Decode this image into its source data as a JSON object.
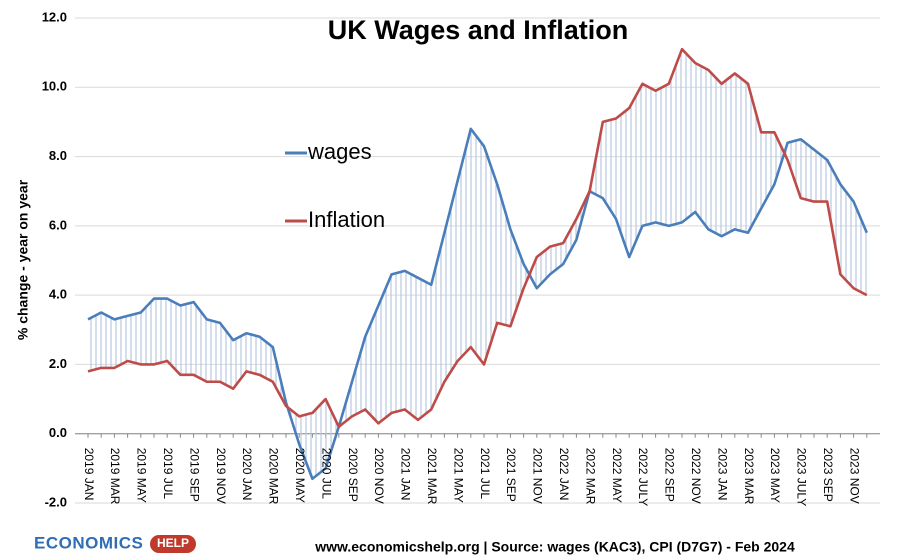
{
  "chart_data": {
    "type": "line",
    "title": "UK Wages and Inflation",
    "y_label": "% change  - year on year",
    "footer": "www.economicshelp.org | Source: wages (KAC3), CPI (D7G7) - Feb 2024",
    "logo": {
      "text": "ECONOMICS",
      "badge": "HELP"
    },
    "grid": true,
    "categories": [
      "2019 JAN",
      null,
      "2019 MAR",
      null,
      "2019 MAY",
      null,
      "2019 JUL",
      null,
      "2019 SEP",
      null,
      "2019 NOV",
      null,
      "2020 JAN",
      null,
      "2020 MAR",
      null,
      "2020 MAY",
      null,
      "2020 JUL",
      null,
      "2020 SEP",
      null,
      "2020 NOV",
      null,
      "2021 JAN",
      null,
      "2021 MAR",
      null,
      "2021 MAY",
      null,
      "2021 JUL",
      null,
      "2021 SEP",
      null,
      "2021 NOV",
      null,
      "2022 JAN",
      null,
      "2022 MAR",
      null,
      "2022 MAY",
      null,
      "2022 JULY",
      null,
      "2022 SEP",
      null,
      "2022 NOV",
      null,
      "2023 JAN",
      null,
      "2023 MAR",
      null,
      "2023 MAY",
      null,
      "2023 JULY",
      null,
      "2023 SEP",
      null,
      "2023 NOV",
      null
    ],
    "series": [
      {
        "name": "wages",
        "color": "#4a7ebb",
        "values": [
          3.3,
          3.5,
          3.3,
          3.4,
          3.5,
          3.9,
          3.9,
          3.7,
          3.8,
          3.3,
          3.2,
          2.7,
          2.9,
          2.8,
          2.5,
          0.9,
          -0.3,
          -1.3,
          -1.0,
          0.2,
          1.5,
          2.8,
          3.7,
          4.6,
          4.7,
          4.5,
          4.3,
          5.8,
          7.3,
          8.8,
          8.3,
          7.2,
          5.9,
          4.9,
          4.2,
          4.6,
          4.9,
          5.6,
          7.0,
          6.8,
          6.2,
          5.1,
          6.0,
          6.1,
          6.0,
          6.1,
          6.4,
          5.9,
          5.7,
          5.9,
          5.8,
          6.5,
          7.2,
          8.4,
          8.5,
          8.2,
          7.9,
          7.2,
          6.7,
          5.8
        ]
      },
      {
        "name": "Inflation",
        "color": "#be4b48",
        "values": [
          1.8,
          1.9,
          1.9,
          2.1,
          2.0,
          2.0,
          2.1,
          1.7,
          1.7,
          1.5,
          1.5,
          1.3,
          1.8,
          1.7,
          1.5,
          0.8,
          0.5,
          0.6,
          1.0,
          0.2,
          0.5,
          0.7,
          0.3,
          0.6,
          0.7,
          0.4,
          0.7,
          1.5,
          2.1,
          2.5,
          2.0,
          3.2,
          3.1,
          4.2,
          5.1,
          5.4,
          5.5,
          6.2,
          7.0,
          9.0,
          9.1,
          9.4,
          10.1,
          9.9,
          10.1,
          11.1,
          10.7,
          10.5,
          10.1,
          10.4,
          10.1,
          8.7,
          8.7,
          7.9,
          6.8,
          6.7,
          6.7,
          4.6,
          4.2,
          4.0
        ]
      }
    ],
    "ylim": [
      -2,
      12
    ],
    "yticks": [
      {
        "value": -2,
        "label": "-2.0"
      },
      {
        "value": 0,
        "label": "0.0"
      },
      {
        "value": 2,
        "label": "2.0"
      },
      {
        "value": 4,
        "label": "4.0"
      },
      {
        "value": 6,
        "label": "6.0"
      },
      {
        "value": 8,
        "label": "8.0"
      },
      {
        "value": 10,
        "label": "10.0"
      },
      {
        "value": 12,
        "label": "12.0"
      }
    ]
  }
}
